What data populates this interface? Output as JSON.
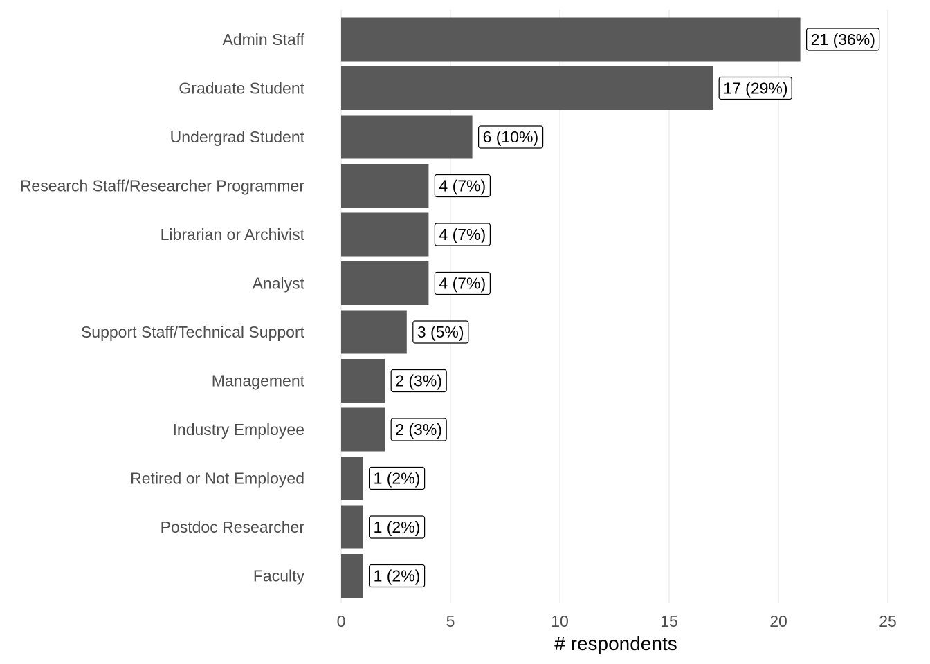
{
  "chart_data": {
    "type": "bar",
    "orientation": "horizontal",
    "categories": [
      "Admin Staff",
      "Graduate Student",
      "Undergrad Student",
      "Research Staff/Researcher Programmer",
      "Librarian or Archivist",
      "Analyst",
      "Support Staff/Technical Support",
      "Management",
      "Industry Employee",
      "Retired or Not Employed",
      "Postdoc Researcher",
      "Faculty"
    ],
    "values": [
      21,
      17,
      6,
      4,
      4,
      4,
      3,
      2,
      2,
      1,
      1,
      1
    ],
    "data_labels": [
      "21 (36%)",
      "17 (29%)",
      "6 (10%)",
      "4 (7%)",
      "4 (7%)",
      "4 (7%)",
      "3 (5%)",
      "2 (3%)",
      "2 (3%)",
      "1 (2%)",
      "1 (2%)",
      "1 (2%)"
    ],
    "title": "",
    "xlabel": "# respondents",
    "ylabel": "",
    "xlim": [
      0,
      25
    ],
    "x_ticks": [
      0,
      5,
      10,
      15,
      20,
      25
    ],
    "x_tick_labels": [
      "0",
      "5",
      "10",
      "15",
      "20",
      "25"
    ],
    "grid": "vertical major",
    "legend": "none",
    "colors": {
      "bar": "#595959",
      "grid": "#ebebeb",
      "label_text": "#4d4d4d",
      "background": "#ffffff"
    }
  }
}
